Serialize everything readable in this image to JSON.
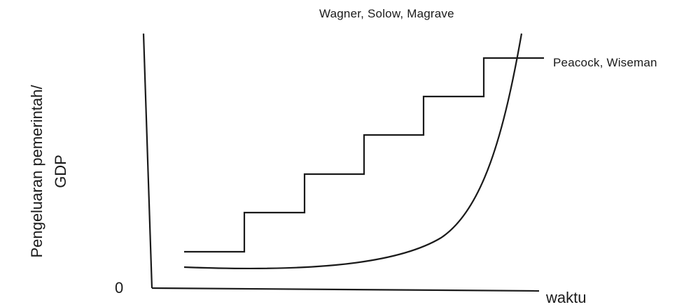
{
  "labels": {
    "top_curve": "Wagner, Solow, Magrave",
    "step_curve": "Peacock, Wiseman",
    "origin": "0",
    "x_axis": "waktu",
    "y_axis_line1": "Pengeluaran pemerintah/",
    "y_axis_line2": "GDP"
  },
  "colors": {
    "line": "#1a1a1a",
    "background": "#ffffff"
  }
}
